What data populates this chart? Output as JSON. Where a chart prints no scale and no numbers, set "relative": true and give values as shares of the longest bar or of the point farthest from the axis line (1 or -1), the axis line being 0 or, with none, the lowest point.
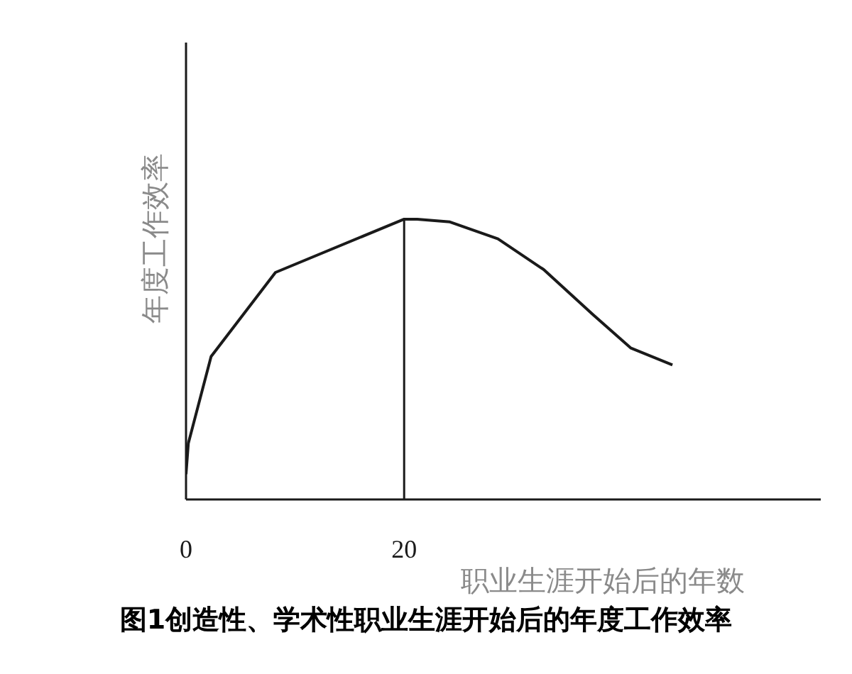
{
  "chart_data": {
    "type": "line",
    "title": "图1创造性、学术性职业生涯开始后的年度工作效率",
    "xlabel": "职业生涯开始后的年数",
    "ylabel": "年度工作效率",
    "relative": true,
    "xlim": [
      0,
      58.2
    ],
    "xticks": [
      0,
      20
    ],
    "marker": "none",
    "line_style": "solid",
    "x": [
      0,
      0.21,
      2.3,
      8.2,
      20,
      21.2,
      24.2,
      28.6,
      32.8,
      37.3,
      40.8,
      44.6
    ],
    "series": [
      {
        "color": "#1a1a1a",
        "values": [
          0.09,
          0.2,
          0.51,
          0.81,
          1.0,
          1.0,
          0.99,
          0.93,
          0.82,
          0.66,
          0.54,
          0.48
        ]
      }
    ],
    "ref_lines": [
      {
        "axis": "x",
        "value": 20,
        "color": "#1a1a1a"
      }
    ]
  }
}
